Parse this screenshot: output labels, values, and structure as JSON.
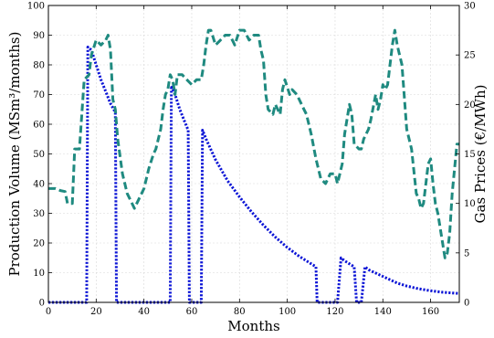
{
  "chart_data": {
    "type": "line",
    "xlabel": "Months",
    "ylabel_left": "Production Volume (MSm³/months)",
    "ylabel_right": "Gas Prices (€/MWh)",
    "xlim": [
      0,
      172
    ],
    "ylim_left": [
      0,
      100
    ],
    "ylim_right": [
      0,
      30
    ],
    "grid": true,
    "x_ticks": [
      "0",
      "20",
      "40",
      "60",
      "80",
      "100",
      "120",
      "140",
      "160"
    ],
    "y_left_ticks": [
      "0",
      "10",
      "20",
      "30",
      "40",
      "50",
      "60",
      "70",
      "80",
      "90",
      "100"
    ],
    "y_right_ticks": [
      "0",
      "5",
      "10",
      "15",
      "20",
      "25",
      "30"
    ],
    "series": [
      {
        "axis": "left",
        "color": "#0b14d6",
        "style": "dotted",
        "points": [
          [
            0,
            0
          ],
          [
            16,
            0
          ],
          [
            16.5,
            86
          ],
          [
            18,
            85
          ],
          [
            20,
            80
          ],
          [
            22,
            75
          ],
          [
            24,
            71
          ],
          [
            26,
            67
          ],
          [
            28,
            64
          ],
          [
            28.5,
            0
          ],
          [
            51,
            0
          ],
          [
            51.5,
            73
          ],
          [
            53,
            70
          ],
          [
            55,
            65
          ],
          [
            57,
            61
          ],
          [
            58.5,
            58
          ],
          [
            59,
            0
          ],
          [
            64,
            0
          ],
          [
            64.5,
            58
          ],
          [
            66,
            55
          ],
          [
            70,
            48
          ],
          [
            75,
            41
          ],
          [
            80,
            35.5
          ],
          [
            85,
            30.5
          ],
          [
            90,
            26
          ],
          [
            95,
            22
          ],
          [
            100,
            18.5
          ],
          [
            105,
            15.5
          ],
          [
            110,
            13
          ],
          [
            112,
            12
          ],
          [
            112.5,
            0
          ],
          [
            121,
            0
          ],
          [
            122.5,
            15
          ],
          [
            124,
            14
          ],
          [
            126,
            13
          ],
          [
            128,
            12
          ],
          [
            129,
            0
          ],
          [
            131,
            0
          ],
          [
            132.5,
            12
          ],
          [
            134,
            11
          ],
          [
            138,
            9.5
          ],
          [
            142,
            8
          ],
          [
            146,
            6.5
          ],
          [
            150,
            5.5
          ],
          [
            155,
            4.6
          ],
          [
            160,
            3.9
          ],
          [
            165,
            3.4
          ],
          [
            170,
            3.1
          ],
          [
            172,
            3
          ]
        ]
      },
      {
        "axis": "right",
        "color": "#1f8a80",
        "style": "dashed",
        "points": [
          [
            0,
            11.5
          ],
          [
            3,
            11.5
          ],
          [
            5,
            11.3
          ],
          [
            7,
            11.2
          ],
          [
            8,
            10
          ],
          [
            10,
            10
          ],
          [
            11,
            15.5
          ],
          [
            13,
            15.5
          ],
          [
            14,
            19
          ],
          [
            15,
            22.5
          ],
          [
            17,
            23
          ],
          [
            18,
            25
          ],
          [
            20,
            26.5
          ],
          [
            22,
            26
          ],
          [
            24,
            26.5
          ],
          [
            25,
            27
          ],
          [
            26,
            25.5
          ],
          [
            27,
            20.5
          ],
          [
            28,
            19.5
          ],
          [
            29,
            16.5
          ],
          [
            31,
            13
          ],
          [
            33,
            11
          ],
          [
            34,
            10.5
          ],
          [
            36,
            9.5
          ],
          [
            37,
            10
          ],
          [
            38,
            10.5
          ],
          [
            40,
            11.5
          ],
          [
            42,
            13.5
          ],
          [
            44,
            15
          ],
          [
            45,
            15.5
          ],
          [
            47,
            17.5
          ],
          [
            48,
            19.5
          ],
          [
            49,
            21
          ],
          [
            50,
            21.5
          ],
          [
            51,
            23
          ],
          [
            52,
            22.5
          ],
          [
            53,
            21
          ],
          [
            54,
            23
          ],
          [
            56,
            23
          ],
          [
            58,
            22.5
          ],
          [
            60,
            22
          ],
          [
            62,
            22.5
          ],
          [
            64,
            22.5
          ],
          [
            65,
            24
          ],
          [
            66,
            26
          ],
          [
            67,
            27.5
          ],
          [
            68,
            27.5
          ],
          [
            70,
            26
          ],
          [
            72,
            26.5
          ],
          [
            74,
            27
          ],
          [
            76,
            27
          ],
          [
            78,
            26
          ],
          [
            80,
            27.5
          ],
          [
            82,
            27.5
          ],
          [
            84,
            26.5
          ],
          [
            86,
            27
          ],
          [
            88,
            27
          ],
          [
            89,
            25.5
          ],
          [
            90,
            24.5
          ],
          [
            91,
            21
          ],
          [
            92,
            19.5
          ],
          [
            94,
            19
          ],
          [
            95,
            20
          ],
          [
            97,
            19
          ],
          [
            98,
            21.5
          ],
          [
            99,
            22.5
          ],
          [
            101,
            21
          ],
          [
            102,
            21.5
          ],
          [
            104,
            21
          ],
          [
            106,
            20
          ],
          [
            107,
            19.5
          ],
          [
            108,
            19
          ],
          [
            110,
            17
          ],
          [
            112,
            14.5
          ],
          [
            114,
            12.5
          ],
          [
            116,
            12
          ],
          [
            118,
            13
          ],
          [
            120,
            13
          ],
          [
            121,
            12
          ],
          [
            123,
            14
          ],
          [
            124,
            17
          ],
          [
            126,
            20
          ],
          [
            127,
            19
          ],
          [
            128,
            16
          ],
          [
            130,
            15.5
          ],
          [
            131,
            15.5
          ],
          [
            132,
            16.5
          ],
          [
            134,
            17.5
          ],
          [
            135,
            18.5
          ],
          [
            137,
            21
          ],
          [
            138,
            19.5
          ],
          [
            139,
            20.5
          ],
          [
            140,
            22
          ],
          [
            141,
            21.5
          ],
          [
            142,
            22
          ],
          [
            143,
            24
          ],
          [
            144,
            26
          ],
          [
            145,
            27.5
          ],
          [
            146,
            26
          ],
          [
            147,
            25
          ],
          [
            148,
            24
          ],
          [
            150,
            17.5
          ],
          [
            152,
            15.5
          ],
          [
            154,
            11
          ],
          [
            155,
            10.5
          ],
          [
            156,
            9.5
          ],
          [
            157,
            10
          ],
          [
            159,
            14
          ],
          [
            160,
            14.5
          ],
          [
            161,
            12
          ],
          [
            162,
            10
          ],
          [
            163,
            9
          ],
          [
            165,
            6
          ],
          [
            166,
            4.5
          ],
          [
            167,
            5
          ],
          [
            168,
            7
          ],
          [
            169,
            11
          ],
          [
            170,
            13.5
          ],
          [
            171,
            16
          ],
          [
            172,
            16
          ]
        ]
      }
    ]
  }
}
